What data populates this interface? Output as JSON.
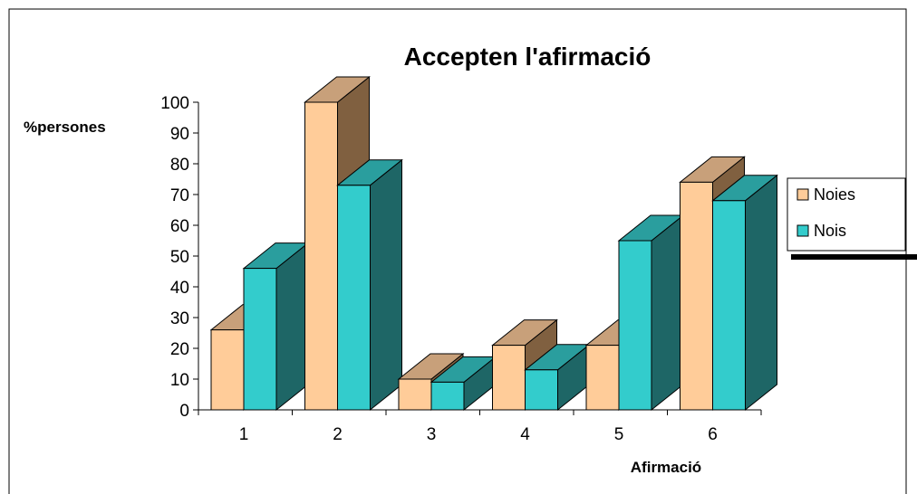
{
  "chart_data": {
    "type": "bar",
    "title": "Accepten l'afirmació",
    "xlabel": "Afirmació",
    "ylabel": "%persones",
    "categories": [
      "1",
      "2",
      "3",
      "4",
      "5",
      "6"
    ],
    "series": [
      {
        "name": "Noies",
        "values": [
          26,
          100,
          10,
          21,
          21,
          74
        ]
      },
      {
        "name": "Nois",
        "values": [
          46,
          73,
          9,
          13,
          55,
          68
        ]
      }
    ],
    "ylim": [
      0,
      100
    ],
    "yticks": [
      "0",
      "10",
      "20",
      "30",
      "40",
      "50",
      "60",
      "70",
      "80",
      "90",
      "100"
    ],
    "grid": false,
    "legend_position": "right",
    "three_d": true,
    "colors": {
      "noies_front": "#FFCC99",
      "noies_side": "#806040",
      "noies_top": "#C8A07A",
      "nois_front": "#33CCCC",
      "nois_side": "#1E6666",
      "nois_top": "#2A9E9E",
      "frame": "#000000",
      "background": "#FFFFFF"
    }
  }
}
